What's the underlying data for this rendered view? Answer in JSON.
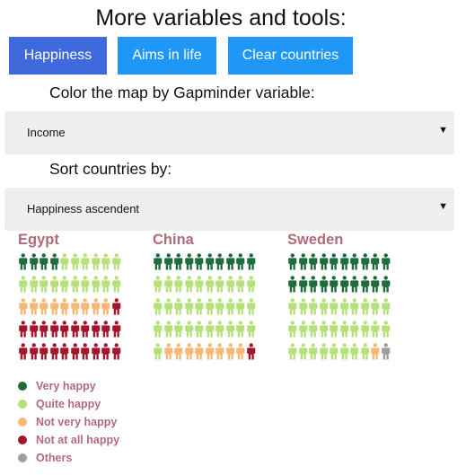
{
  "title": "More variables and tools:",
  "buttons": [
    {
      "label": "Happiness"
    },
    {
      "label": "Aims in life"
    },
    {
      "label": "Clear countries"
    }
  ],
  "color_label": "Color the map by Gapminder variable:",
  "color_select": {
    "value": "Income"
  },
  "sort_label": "Sort countries by:",
  "sort_select": {
    "value": "Happiness ascendent"
  },
  "colors": {
    "very_happy": "#1e6b3c",
    "quite_happy": "#b5e07a",
    "not_very_happy": "#f7b876",
    "not_at_all_happy": "#a3162e",
    "others": "#9e9e9e"
  },
  "countries": [
    {
      "name": "Egypt",
      "counts": {
        "very_happy": 4,
        "quite_happy": 16,
        "not_very_happy": 9,
        "not_at_all_happy": 21,
        "others": 0
      }
    },
    {
      "name": "China",
      "counts": {
        "very_happy": 10,
        "quite_happy": 31,
        "not_very_happy": 8,
        "not_at_all_happy": 1,
        "others": 0
      }
    },
    {
      "name": "Sweden",
      "counts": {
        "very_happy": 20,
        "quite_happy": 28,
        "not_very_happy": 1,
        "not_at_all_happy": 0,
        "others": 1
      }
    }
  ],
  "legend": [
    {
      "label": "Very happy",
      "color": "#1e6b3c"
    },
    {
      "label": "Quite happy",
      "color": "#b5e07a"
    },
    {
      "label": "Not very happy",
      "color": "#f7b876"
    },
    {
      "label": "Not at all happy",
      "color": "#a3162e"
    },
    {
      "label": "Others",
      "color": "#9e9e9e"
    }
  ]
}
